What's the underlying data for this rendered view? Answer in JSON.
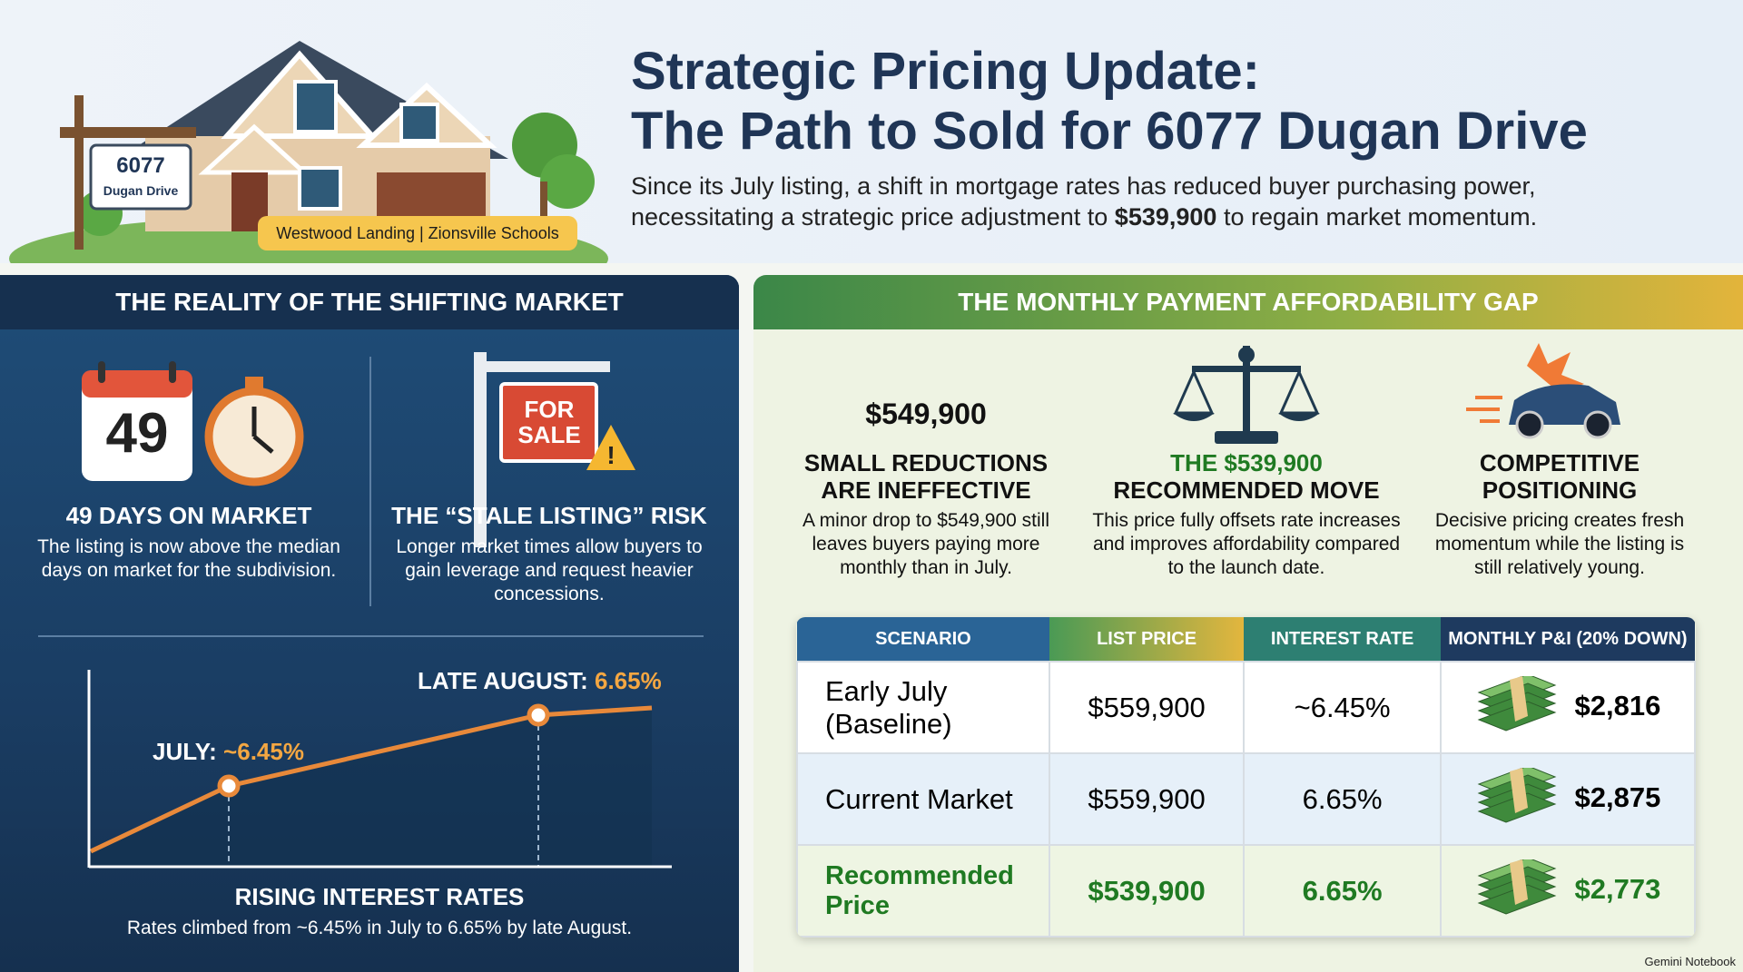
{
  "header": {
    "title_line1": "Strategic Pricing Update:",
    "title_line2": "The Path to Sold for 6077 Dugan Drive",
    "subtitle_line1": "Since its July listing, a shift in mortgage rates has reduced buyer purchasing power,",
    "subtitle_before": "necessitating a strategic price adjustment to",
    "subtitle_price": "$539,900",
    "subtitle_after": "to regain market momentum.",
    "sign_number": "6077",
    "sign_street": "Dugan Drive",
    "neighborhood": "Westwood Landing | Zionsville Schools"
  },
  "left_panel": {
    "title": "THE REALITY OF THE SHIFTING MARKET",
    "calendar_number": "49",
    "cards": [
      {
        "title": "49 DAYS ON MARKET",
        "text": "The listing is now above the median days on market for the subdivision."
      },
      {
        "title": "THE “STALE LISTING” RISK",
        "text": "Longer market times allow buyers to gain leverage and request heavier concessions."
      }
    ],
    "sign_text_1": "FOR",
    "sign_text_2": "SALE",
    "chart": {
      "late_label": "LATE AUGUST:",
      "late_value": "6.65%",
      "july_label": "JULY:",
      "july_value": "~6.45%",
      "title": "RISING INTEREST RATES",
      "text": "Rates climbed from ~6.45% in July to 6.65% by late August."
    }
  },
  "right_panel": {
    "title": "THE MONTHLY PAYMENT AFFORDABILITY GAP",
    "price_badge": "$549,900",
    "cards": [
      {
        "title": "SMALL REDUCTIONS ARE INEFFECTIVE",
        "text": "A minor drop to $549,900 still leaves buyers paying more monthly than in July."
      },
      {
        "title_highlight": "THE $539,900",
        "title": "RECOMMENDED MOVE",
        "text": "This price fully offsets rate increases and improves affordability compared to the launch date."
      },
      {
        "title": "COMPETITIVE POSITIONING",
        "text": "Decisive pricing creates fresh momentum while the listing is still relatively young."
      }
    ],
    "table": {
      "headers": [
        "SCENARIO",
        "LIST PRICE",
        "INTEREST RATE",
        "MONTHLY P&I (20% DOWN)"
      ],
      "rows": [
        [
          "Early July (Baseline)",
          "$559,900",
          "~6.45%",
          "$2,816"
        ],
        [
          "Current Market",
          "$559,900",
          "6.65%",
          "$2,875"
        ],
        [
          "Recommended Price",
          "$539,900",
          "6.65%",
          "$2,773"
        ]
      ]
    }
  },
  "footer": "Gemini Notebook"
}
